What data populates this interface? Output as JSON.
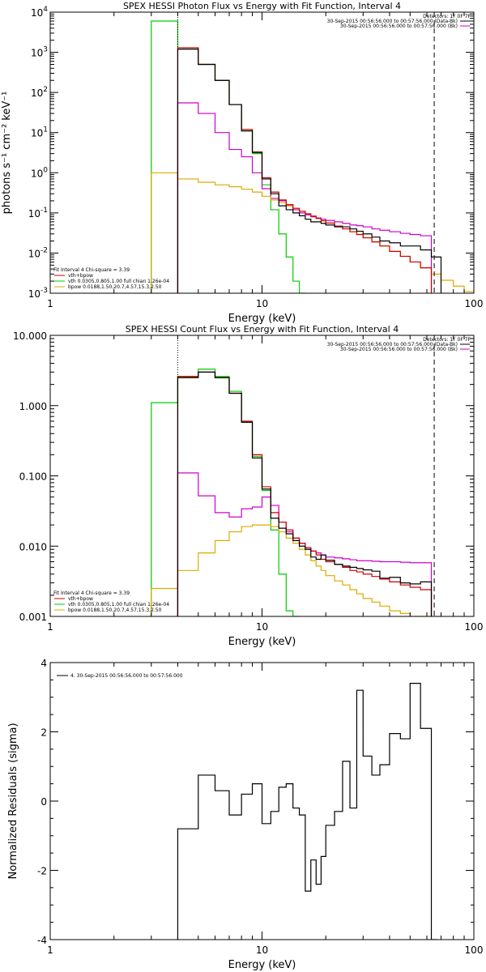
{
  "chart_data": [
    {
      "type": "line",
      "step": true,
      "title": "SPEX HESSI Photon Flux vs Energy with Fit Function, Interval 4",
      "xlabel": "Energy (keV)",
      "ylabel": "photons s⁻¹ cm⁻² keV⁻¹",
      "xscale": "log",
      "yscale": "log",
      "xlim": [
        1,
        100
      ],
      "ylim": [
        0.001,
        10000
      ],
      "grid": false,
      "x_ticks": [
        {
          "v": 1,
          "label": "1"
        },
        {
          "v": 10,
          "label": "10"
        },
        {
          "v": 100,
          "label": "100"
        }
      ],
      "y_ticks": [
        {
          "v": 0.001,
          "base": "10",
          "exp": "-3"
        },
        {
          "v": 0.01,
          "base": "10",
          "exp": "-2"
        },
        {
          "v": 0.1,
          "base": "10",
          "exp": "-1"
        },
        {
          "v": 1,
          "base": "10",
          "exp": "0"
        },
        {
          "v": 10,
          "base": "10",
          "exp": "1"
        },
        {
          "v": 100,
          "base": "10",
          "exp": "2"
        },
        {
          "v": 1000,
          "base": "10",
          "exp": "3"
        },
        {
          "v": 10000,
          "base": "10",
          "exp": "4"
        }
      ],
      "vlines": [
        {
          "x": 4.0,
          "style": "dotted"
        },
        {
          "x": 65,
          "style": "dashed"
        }
      ],
      "legend_top_right": [
        {
          "text": "Detectors: 1F 0F 7F",
          "color": ""
        },
        {
          "text": "30-Sep-2015 00:56:56.000 to 00:57:56.000 (Data-Bk)",
          "color": "#000000"
        },
        {
          "text": "30-Sep-2015 00:56:56.000 to 00:57:56.000 (Bk)",
          "color": "#cc00cc"
        }
      ],
      "legend_bottom_left": [
        {
          "text": "Fit Interval 4   Chi-square = 3.39",
          "color": ""
        },
        {
          "text": "vth+bpow",
          "color": "#cc0000"
        },
        {
          "text": "vth 0.0305,0.805,1.00  full chian 1.26e-04",
          "color": "#00cc00"
        },
        {
          "text": "bpow 0.0188,1.50,20.7,4.57,15.3,2.50",
          "color": "#ddaa00"
        }
      ],
      "edges": [
        3.0,
        4.0,
        5.0,
        6.0,
        7.0,
        8.0,
        9.0,
        10.0,
        11.0,
        12.0,
        13.0,
        14.0,
        15.0,
        16.0,
        17.0,
        18.0,
        19.0,
        20.0,
        22.0,
        24.0,
        26.0,
        28.0,
        30.0,
        33.0,
        36.0,
        40.0,
        45.0,
        50.0,
        56.0,
        63.0,
        70.0,
        80.0,
        90.0,
        100.0
      ],
      "series": [
        {
          "color": "#00cc00",
          "values": [
            6000,
            1300,
            500,
            200,
            50,
            12,
            3,
            0.5,
            0.12,
            0.03,
            0.008,
            0.002,
            0.0005,
            null,
            null,
            null,
            null,
            null,
            null,
            null,
            null,
            null,
            null,
            null,
            null,
            null,
            null,
            null,
            null,
            null,
            null,
            null,
            null
          ]
        },
        {
          "color": "#cc00cc",
          "values": [
            null,
            55,
            30,
            10,
            3.8,
            2.5,
            1.0,
            0.4,
            0.23,
            0.2,
            0.16,
            0.12,
            0.1,
            0.09,
            0.08,
            0.075,
            0.07,
            0.065,
            0.06,
            0.055,
            0.05,
            0.048,
            0.045,
            0.04,
            0.037,
            0.034,
            0.031,
            0.029,
            0.027,
            null,
            null,
            null,
            null
          ]
        },
        {
          "color": "#ddaa00",
          "values": [
            1.0,
            0.7,
            0.58,
            0.5,
            0.45,
            0.39,
            0.33,
            0.26,
            0.21,
            0.18,
            0.15,
            0.13,
            0.11,
            0.095,
            0.083,
            0.073,
            0.064,
            0.056,
            0.047,
            0.04,
            0.034,
            0.029,
            0.024,
            0.019,
            0.015,
            0.011,
            0.0083,
            0.006,
            0.0043,
            0.003,
            0.0021,
            0.0015,
            0.0011
          ]
        },
        {
          "color": "#cc0000",
          "values": [
            null,
            1300,
            500,
            200,
            50,
            12,
            3.3,
            0.75,
            0.33,
            0.21,
            0.16,
            0.13,
            0.11,
            0.095,
            0.083,
            0.073,
            0.064,
            0.056,
            0.047,
            0.04,
            0.034,
            0.029,
            0.024,
            0.019,
            0.015,
            0.011,
            0.0083,
            0.006,
            0.0043,
            null,
            null,
            null,
            null
          ]
        },
        {
          "color": "#000000",
          "values": [
            null,
            1200,
            500,
            200,
            50,
            11,
            3.2,
            0.7,
            0.3,
            0.15,
            0.12,
            0.1,
            0.085,
            0.07,
            0.06,
            0.06,
            0.055,
            0.05,
            0.045,
            0.045,
            0.04,
            0.035,
            0.03,
            0.025,
            0.02,
            0.018,
            0.015,
            0.015,
            0.012,
            0.008,
            null,
            null,
            null
          ]
        }
      ]
    },
    {
      "type": "line",
      "step": true,
      "title": "SPEX HESSI Count Flux vs Energy with Fit Function, Interval 4",
      "xlabel": "Energy (keV)",
      "ylabel": "",
      "xscale": "log",
      "yscale": "log",
      "xlim": [
        1,
        100
      ],
      "ylim": [
        0.001,
        10
      ],
      "grid": false,
      "x_ticks": [
        {
          "v": 1,
          "label": "1"
        },
        {
          "v": 10,
          "label": "10"
        },
        {
          "v": 100,
          "label": "100"
        }
      ],
      "y_ticks": [
        {
          "v": 0.001,
          "label": "0.001"
        },
        {
          "v": 0.01,
          "label": "0.010"
        },
        {
          "v": 0.1,
          "label": "0.100"
        },
        {
          "v": 1,
          "label": "1.000"
        },
        {
          "v": 10,
          "label": "10.000"
        }
      ],
      "vlines": [
        {
          "x": 4.0,
          "style": "dotted"
        },
        {
          "x": 65,
          "style": "dashed"
        }
      ],
      "legend_top_right": [
        {
          "text": "Detectors: 1F 0F 7F",
          "color": ""
        },
        {
          "text": "30-Sep-2015 00:56:56.000 to 00:57:56.000 (Data-Bk)",
          "color": "#000000"
        },
        {
          "text": "30-Sep-2015 00:56:56.000 to 00:57:56.000 (Bk)",
          "color": "#cc00cc"
        }
      ],
      "legend_bottom_left": [
        {
          "text": "Fit Interval 4   Chi-square = 3.39",
          "color": ""
        },
        {
          "text": "vth+bpow",
          "color": "#cc0000"
        },
        {
          "text": "vth 0.0305,0.805,1.00  full chian 1.26e-04",
          "color": "#00cc00"
        },
        {
          "text": "bpow 0.0188,1.50,20.7,4.57,15.3,2.50",
          "color": "#ddaa00"
        }
      ],
      "edges": [
        3.0,
        4.0,
        5.0,
        6.0,
        7.0,
        8.0,
        9.0,
        10.0,
        11.0,
        12.0,
        13.0,
        14.0,
        15.0,
        16.0,
        17.0,
        18.0,
        19.0,
        20.0,
        22.0,
        24.0,
        26.0,
        28.0,
        30.0,
        33.0,
        36.0,
        40.0,
        45.0,
        50.0,
        56.0,
        63.0,
        70.0,
        80.0,
        90.0,
        100.0
      ],
      "series": [
        {
          "color": "#00cc00",
          "values": [
            1.1,
            2.6,
            3.3,
            2.6,
            1.6,
            0.58,
            0.19,
            0.062,
            0.017,
            0.004,
            0.0012,
            0.0004,
            null,
            null,
            null,
            null,
            null,
            null,
            null,
            null,
            null,
            null,
            null,
            null,
            null,
            null,
            null,
            null,
            null,
            null,
            null,
            null,
            null
          ]
        },
        {
          "color": "#cc00cc",
          "values": [
            null,
            0.11,
            0.052,
            0.03,
            0.026,
            0.034,
            0.036,
            0.05,
            0.038,
            0.022,
            0.016,
            0.013,
            0.011,
            0.0095,
            0.0085,
            0.008,
            0.0075,
            0.007,
            0.0068,
            0.0066,
            0.0064,
            0.0062,
            0.0062,
            0.0061,
            0.006,
            0.006,
            0.0059,
            0.0058,
            0.0058,
            null,
            null,
            null,
            null
          ]
        },
        {
          "color": "#ddaa00",
          "values": [
            0.0025,
            0.0045,
            0.008,
            0.012,
            0.016,
            0.019,
            0.02,
            0.02,
            0.019,
            0.016,
            0.013,
            0.011,
            0.009,
            0.0075,
            0.0062,
            0.0052,
            0.0045,
            0.0038,
            0.0032,
            0.0028,
            0.0024,
            0.0021,
            0.0018,
            0.0016,
            0.0014,
            0.0012,
            0.0011,
            0.001,
            0.0009,
            0.0008,
            null,
            null,
            null
          ]
        },
        {
          "color": "#cc0000",
          "values": [
            null,
            2.6,
            3.0,
            2.5,
            1.5,
            0.6,
            0.2,
            0.07,
            0.03,
            0.022,
            0.017,
            0.013,
            0.011,
            0.0095,
            0.0085,
            0.0075,
            0.0065,
            0.006,
            0.0055,
            0.005,
            0.0045,
            0.0043,
            0.004,
            0.0037,
            0.0034,
            0.0031,
            0.0028,
            0.0026,
            0.0024,
            null,
            null,
            null,
            null
          ]
        },
        {
          "color": "#000000",
          "values": [
            null,
            2.5,
            3.0,
            2.5,
            1.5,
            0.58,
            0.18,
            0.065,
            0.025,
            0.018,
            0.015,
            0.012,
            0.01,
            0.009,
            0.007,
            0.0065,
            0.0075,
            0.0063,
            0.0055,
            0.0052,
            0.005,
            0.0048,
            0.0046,
            0.0044,
            0.0035,
            0.0036,
            0.003,
            0.0029,
            0.0031,
            null,
            null,
            null,
            null
          ]
        }
      ]
    },
    {
      "type": "line",
      "step": true,
      "title": "",
      "xlabel": "Energy (keV)",
      "ylabel": "Normalized Residuals (sigma)",
      "xscale": "log",
      "yscale": "linear",
      "xlim": [
        1,
        100
      ],
      "ylim": [
        -4,
        4
      ],
      "grid": false,
      "x_ticks": [
        {
          "v": 1,
          "label": "1"
        },
        {
          "v": 10,
          "label": "10"
        },
        {
          "v": 100,
          "label": "100"
        }
      ],
      "y_ticks": [
        {
          "v": -4,
          "label": "-4"
        },
        {
          "v": -2,
          "label": "-2"
        },
        {
          "v": 0,
          "label": "0"
        },
        {
          "v": 2,
          "label": "2"
        },
        {
          "v": 4,
          "label": "4"
        }
      ],
      "vlines": [],
      "legend_top_left": [
        {
          "text": "4. 30-Sep-2015 00:56:56.000 to 00:57:56.000",
          "color": "#000000"
        }
      ],
      "edges": [
        4.0,
        5.0,
        6.0,
        7.0,
        8.0,
        9.0,
        10.0,
        11.0,
        12.0,
        13.0,
        14.0,
        15.0,
        16.0,
        17.0,
        18.0,
        19.0,
        20.0,
        22.0,
        24.0,
        26.0,
        28.0,
        30.0,
        33.0,
        36.0,
        40.0,
        45.0,
        50.0,
        56.0,
        63.0,
        67.0
      ],
      "series": [
        {
          "color": "#000000",
          "values": [
            -0.8,
            0.75,
            0.3,
            -0.4,
            0.2,
            0.5,
            -0.65,
            -0.3,
            0.4,
            0.5,
            -0.2,
            -0.4,
            -2.6,
            -1.7,
            -2.4,
            -1.6,
            -0.7,
            -0.3,
            1.15,
            -0.2,
            3.2,
            1.3,
            0.75,
            1.05,
            1.95,
            1.8,
            3.4,
            2.1,
            -4
          ]
        }
      ]
    }
  ]
}
